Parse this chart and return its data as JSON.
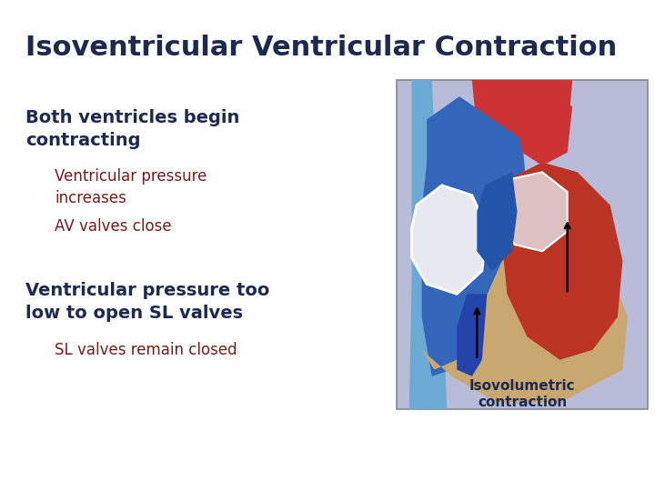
{
  "title": "Isoventricular Ventricular Contraction",
  "title_color": "#1c2951",
  "title_fontsize": 22,
  "title_bold": true,
  "background_color": "#ffffff",
  "bullet1_text": "Both ventricles begin\ncontracting",
  "bullet1_color": "#1c2951",
  "bullet1_fontsize": 14,
  "bullet1_bold": true,
  "sub1a_text": "Ventricular pressure\nincreases",
  "sub1a_color": "#7a1a1a",
  "sub1a_fontsize": 12,
  "sub1b_text": "AV valves close",
  "sub1b_color": "#7a1a1a",
  "sub1b_fontsize": 12,
  "bullet2_text": "Ventricular pressure too\nlow to open SL valves",
  "bullet2_color": "#1c2951",
  "bullet2_fontsize": 14,
  "bullet2_bold": true,
  "sub2a_text": "SL valves remain closed",
  "sub2a_color": "#7a1a1a",
  "sub2a_fontsize": 12,
  "image_caption": "Isovolumetric\ncontraction",
  "image_caption_color": "#1c2951",
  "image_bg_color": "#b8bcd8",
  "image_border_color": "#888888"
}
